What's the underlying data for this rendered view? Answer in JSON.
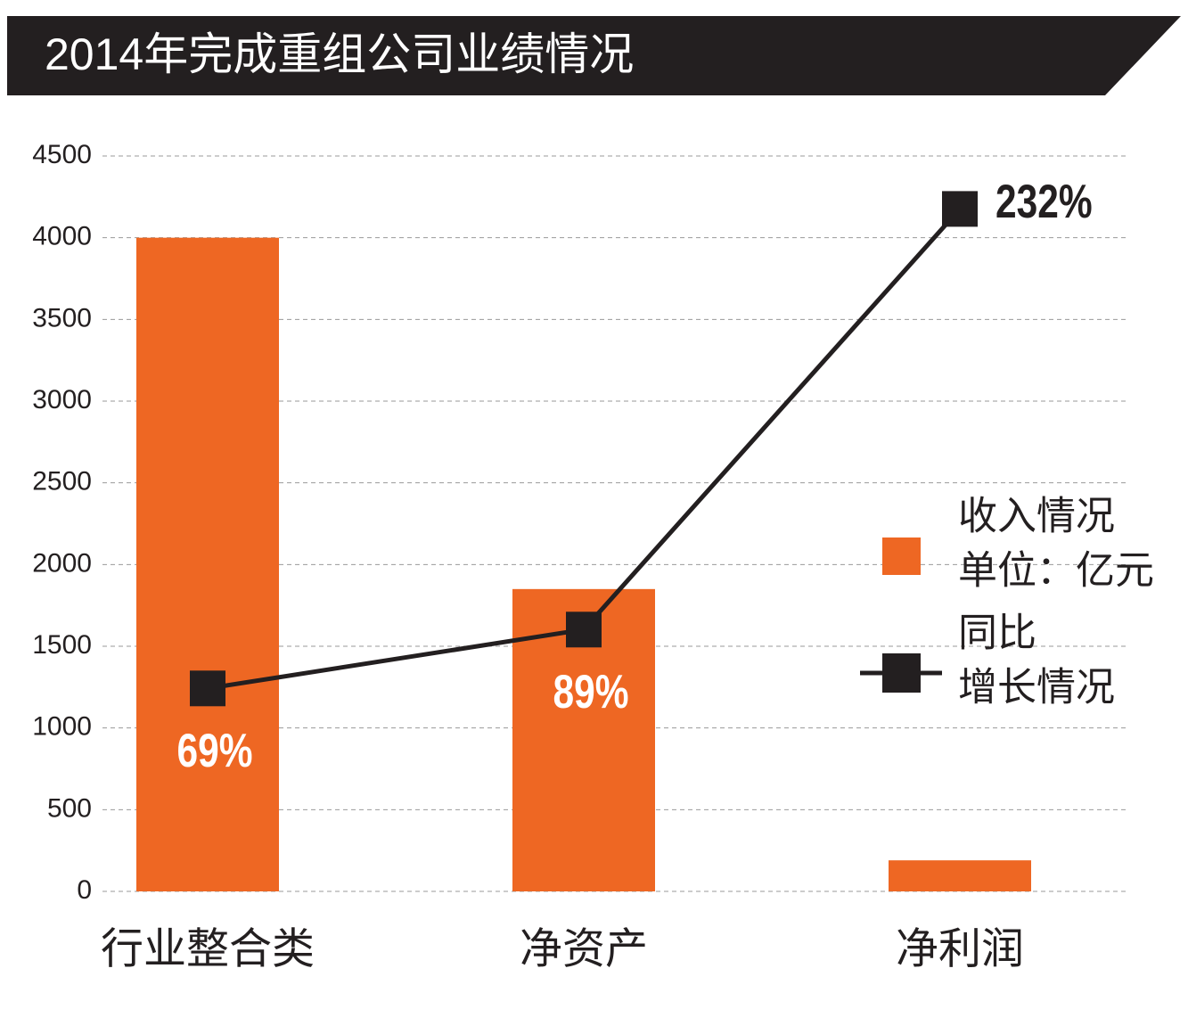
{
  "chart_data": {
    "type": "bar",
    "title": "2014年完成重组公司业绩情况",
    "categories": [
      "行业整合类",
      "净资产",
      "净利润"
    ],
    "series": [
      {
        "name": [
          "收入情况",
          "单位：亿元"
        ],
        "type": "bar",
        "color": "#ee6723",
        "values": [
          4000,
          1850,
          190
        ]
      },
      {
        "name": [
          "同比",
          "增长情况"
        ],
        "type": "line",
        "color": "#231f20",
        "axis": "y2",
        "values": [
          69,
          89,
          232
        ],
        "value_labels": [
          "69%",
          "89%",
          "232%"
        ]
      }
    ],
    "ylim": [
      0,
      4500
    ],
    "yticks": [
      0,
      500,
      1000,
      1500,
      2000,
      2500,
      3000,
      3500,
      4000,
      4500
    ],
    "y2lim": [
      0,
      250
    ],
    "grid": true
  }
}
